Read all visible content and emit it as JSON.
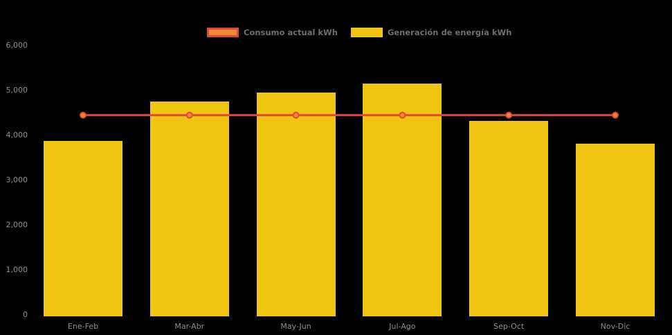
{
  "window": {
    "background": "#000000"
  },
  "chart_data": {
    "type": "bar",
    "title": "",
    "xlabel": "",
    "ylabel": "",
    "categories": [
      "Ene-Feb",
      "Mar-Abr",
      "May-Jun",
      "Jul-Ago",
      "Sep-Oct",
      "Nov-Dic"
    ],
    "series": [
      {
        "name": "Consumo actual kWh",
        "type": "line",
        "color": "#E2483A",
        "marker_color": "#ED8B33",
        "values": [
          4450,
          4450,
          4450,
          4450,
          4450,
          4450
        ]
      },
      {
        "name": "Generación de energía kWh",
        "type": "bar",
        "color": "#F0C412",
        "values": [
          3870,
          4750,
          4950,
          5150,
          4330,
          3810
        ]
      }
    ],
    "ylim": [
      0,
      6000
    ],
    "y_ticks": [
      0,
      1000,
      2000,
      3000,
      4000,
      5000,
      6000
    ],
    "y_tick_labels": [
      "0",
      "1,000",
      "2,000",
      "3,000",
      "4,000",
      "5,000",
      "6,000"
    ],
    "grid": false,
    "legend_position": "top-center",
    "axis_text_color": "#8F8F8F",
    "legend_text_color": "#6E6E6E",
    "background": "#000000"
  }
}
